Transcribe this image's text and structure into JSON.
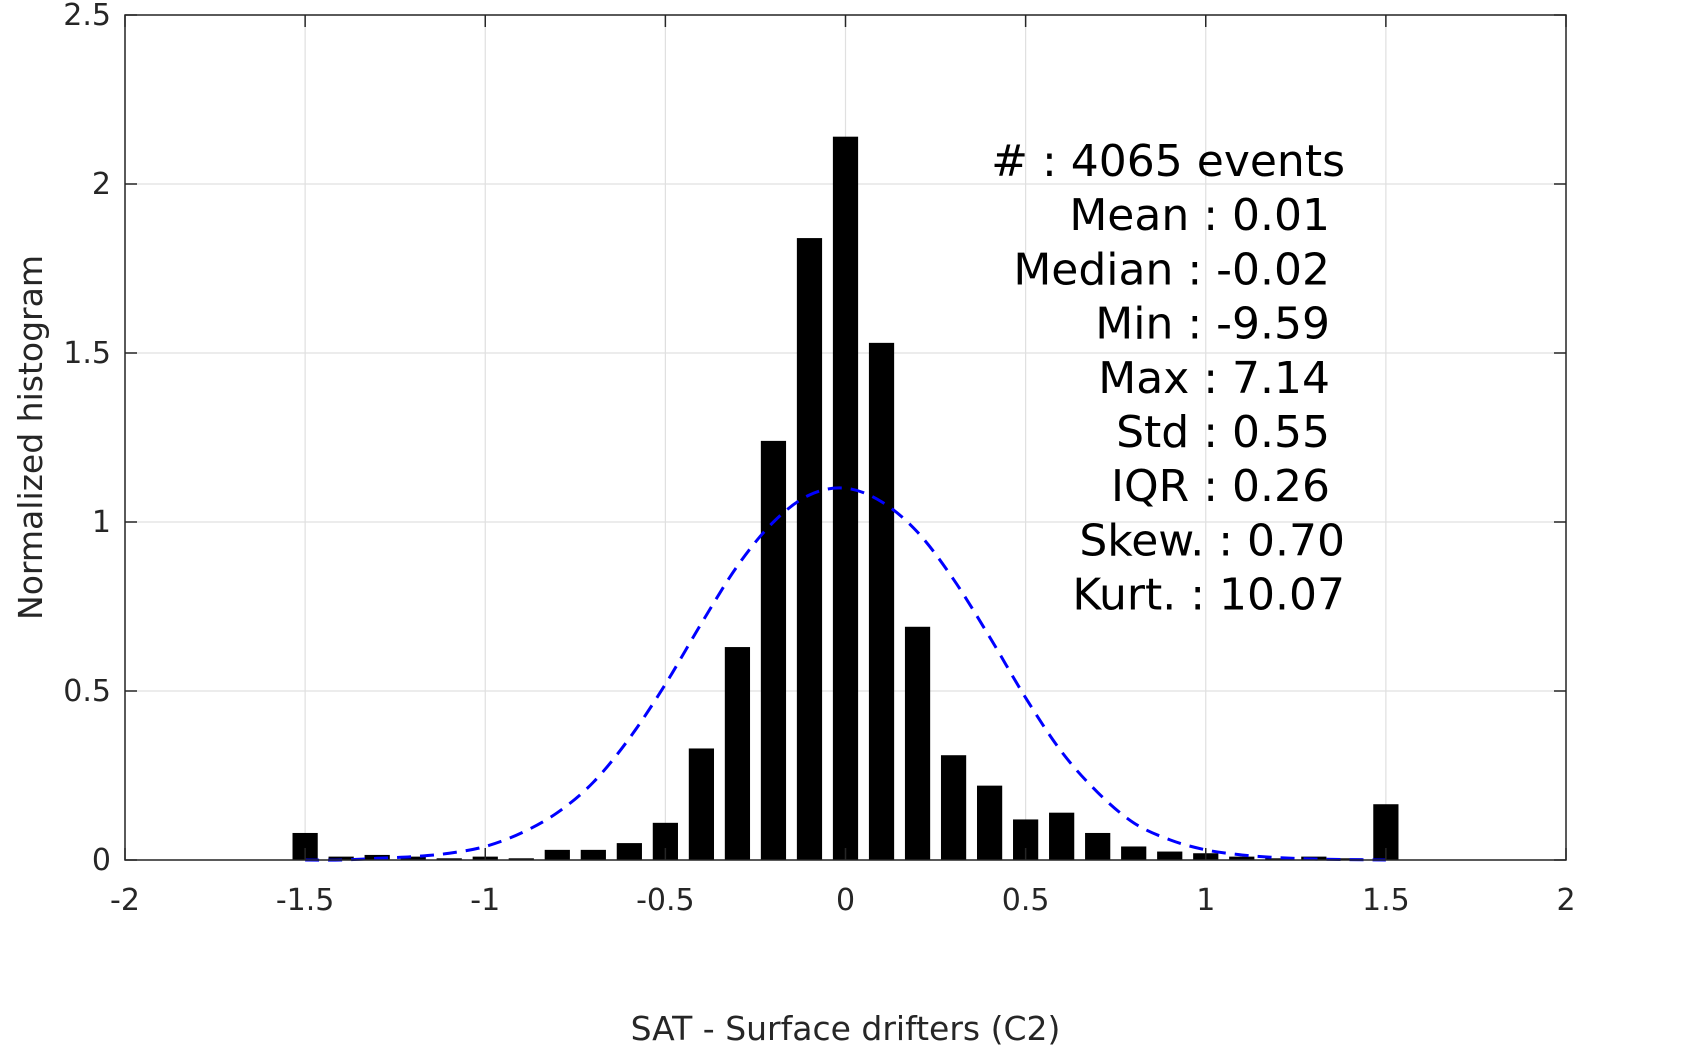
{
  "chart_data": {
    "type": "bar",
    "xlabel": "SAT - Surface drifters (C2)",
    "ylabel": "Normalized histogram",
    "xlim": [
      -2,
      2
    ],
    "ylim": [
      0,
      2.5
    ],
    "grid": true,
    "x_ticks": [
      "-2",
      "-1.5",
      "-1",
      "-0.5",
      "0",
      "0.5",
      "1",
      "1.5",
      "2"
    ],
    "y_ticks": [
      "0",
      "0.5",
      "1",
      "1.5",
      "2",
      "2.5"
    ],
    "bar_width": 0.07,
    "bar_color": "#000000",
    "bars": [
      {
        "x": -1.5,
        "y": 0.08
      },
      {
        "x": -1.4,
        "y": 0.01
      },
      {
        "x": -1.3,
        "y": 0.015
      },
      {
        "x": -1.2,
        "y": 0.01
      },
      {
        "x": -1.1,
        "y": 0.005
      },
      {
        "x": -1.0,
        "y": 0.01
      },
      {
        "x": -0.9,
        "y": 0.005
      },
      {
        "x": -0.8,
        "y": 0.03
      },
      {
        "x": -0.7,
        "y": 0.03
      },
      {
        "x": -0.6,
        "y": 0.05
      },
      {
        "x": -0.5,
        "y": 0.11
      },
      {
        "x": -0.4,
        "y": 0.33
      },
      {
        "x": -0.3,
        "y": 0.63
      },
      {
        "x": -0.2,
        "y": 1.24
      },
      {
        "x": -0.1,
        "y": 1.84
      },
      {
        "x": 0.0,
        "y": 2.14
      },
      {
        "x": 0.1,
        "y": 1.53
      },
      {
        "x": 0.2,
        "y": 0.69
      },
      {
        "x": 0.3,
        "y": 0.31
      },
      {
        "x": 0.4,
        "y": 0.22
      },
      {
        "x": 0.5,
        "y": 0.12
      },
      {
        "x": 0.6,
        "y": 0.14
      },
      {
        "x": 0.7,
        "y": 0.08
      },
      {
        "x": 0.8,
        "y": 0.04
      },
      {
        "x": 0.9,
        "y": 0.025
      },
      {
        "x": 1.0,
        "y": 0.02
      },
      {
        "x": 1.1,
        "y": 0.01
      },
      {
        "x": 1.2,
        "y": 0.005
      },
      {
        "x": 1.3,
        "y": 0.01
      },
      {
        "x": 1.4,
        "y": 0.005
      },
      {
        "x": 1.5,
        "y": 0.165
      }
    ],
    "fit_curve": {
      "style": "dashed",
      "color": "#0000ff",
      "x": [
        -1.5,
        -1.4,
        -1.3,
        -1.2,
        -1.1,
        -1.0,
        -0.9,
        -0.8,
        -0.7,
        -0.6,
        -0.5,
        -0.4,
        -0.3,
        -0.2,
        -0.1,
        0.0,
        0.1,
        0.2,
        0.3,
        0.4,
        0.5,
        0.6,
        0.7,
        0.8,
        0.9,
        1.0,
        1.1,
        1.2,
        1.3,
        1.4,
        1.5
      ],
      "y": [
        0.0,
        0.0,
        0.005,
        0.01,
        0.02,
        0.04,
        0.08,
        0.14,
        0.23,
        0.36,
        0.52,
        0.7,
        0.87,
        1.0,
        1.08,
        1.1,
        1.06,
        0.97,
        0.83,
        0.66,
        0.48,
        0.32,
        0.2,
        0.11,
        0.06,
        0.03,
        0.015,
        0.007,
        0.003,
        0.001,
        0.0
      ]
    },
    "annotation_lines": [
      "#  : 4065 events",
      "Mean : 0.01",
      "Median : -0.02",
      "Min : -9.59",
      "Max : 7.14",
      "Std : 0.55",
      "IQR : 0.26",
      "Skew. : 0.70",
      "Kurt. : 10.07"
    ]
  }
}
